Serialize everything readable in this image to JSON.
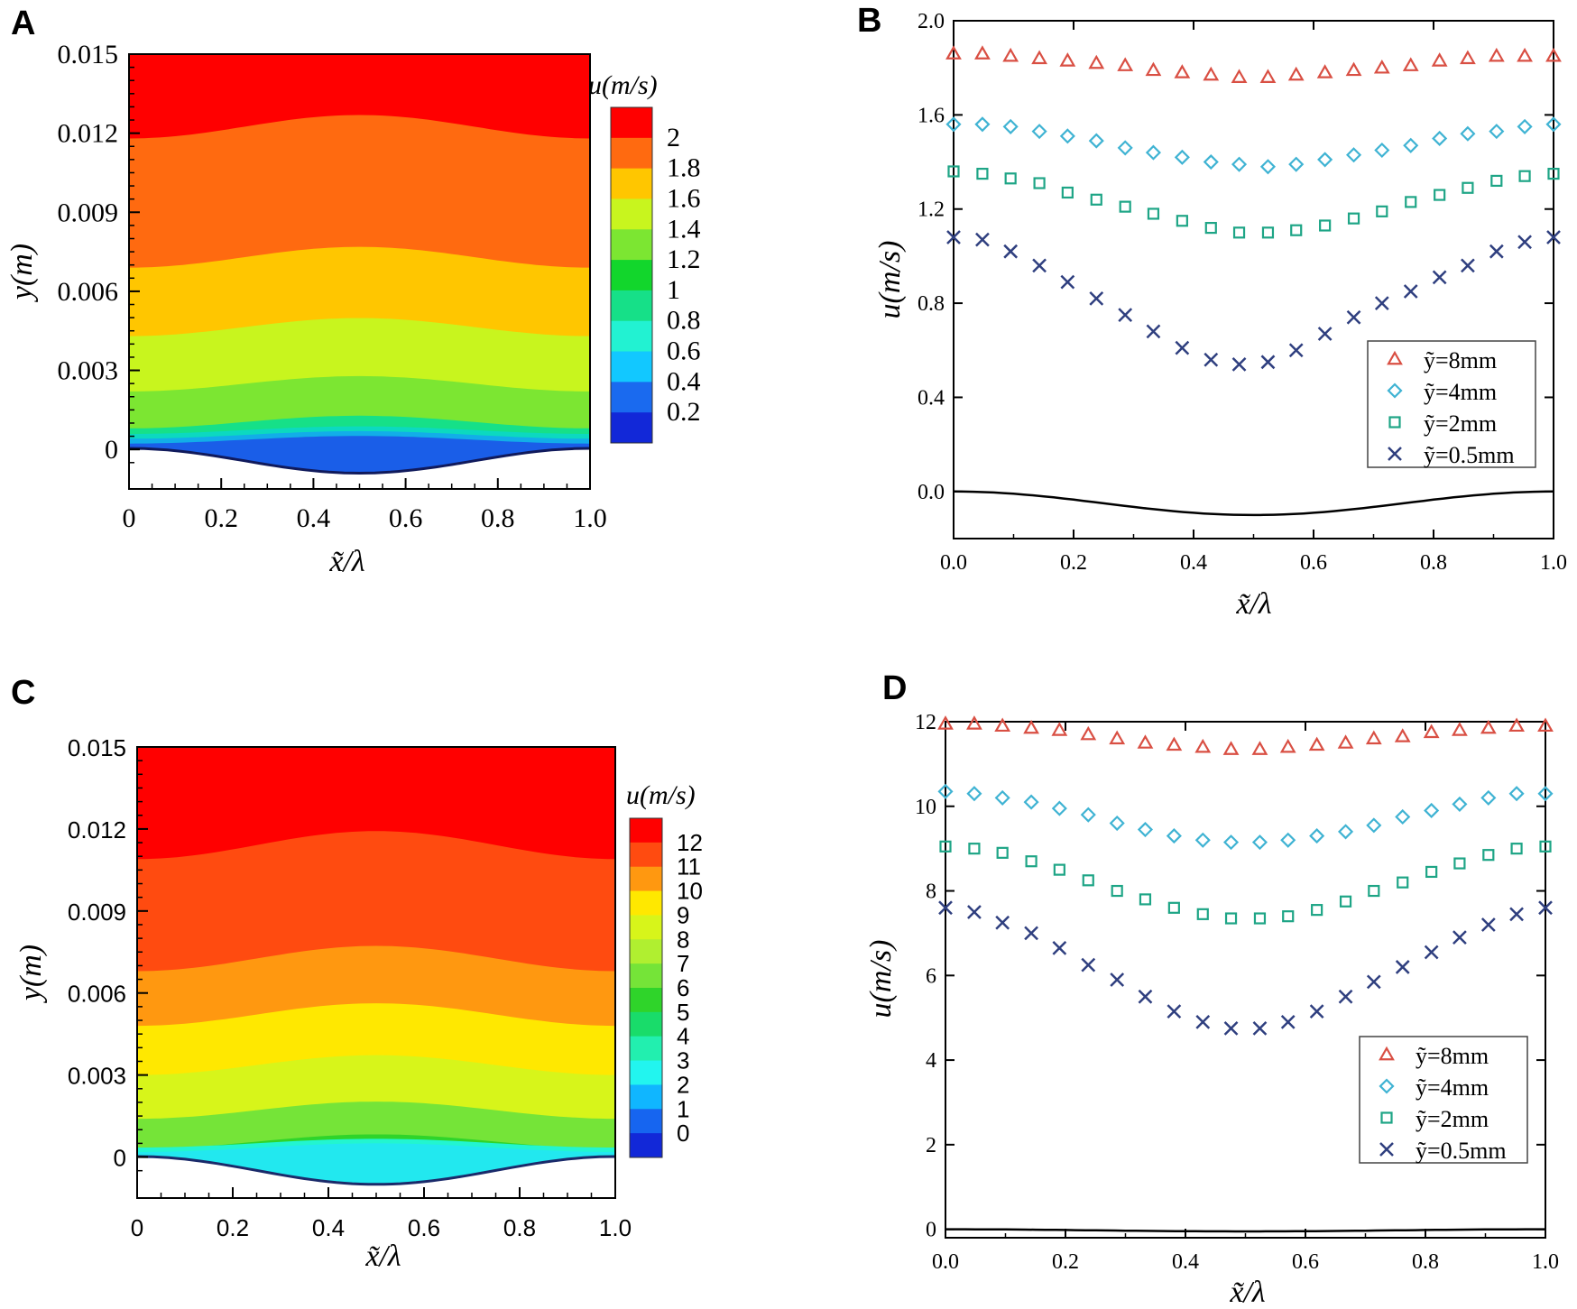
{
  "colors": {
    "red": "#d94f43",
    "cyan": "#3fb3d3",
    "teal": "#1ea586",
    "navy": "#2f3f7f"
  },
  "chart_data": [
    {
      "panel": "A",
      "type": "heatmap",
      "title": "",
      "xlabel": "x̃/λ",
      "ylabel": "y(m)",
      "xlim": [
        0,
        1.0
      ],
      "ylim": [
        -0.0015,
        0.015
      ],
      "xticks": [
        "0",
        "0.2",
        "0.4",
        "0.6",
        "0.8",
        "1.0"
      ],
      "yticks": [
        "0",
        "0.003",
        "0.006",
        "0.009",
        "0.012",
        "0.015"
      ],
      "colorbar_title": "u(m/s)",
      "colorbar_levels": [
        "2",
        "1.8",
        "1.6",
        "1.4",
        "1.2",
        "1",
        "0.8",
        "0.6",
        "0.4",
        "0.2"
      ],
      "colorbar_colors": [
        "#ff0000",
        "#ff6a10",
        "#ffc600",
        "#c8f51e",
        "#7ce632",
        "#12d62c",
        "#16e088",
        "#22f2d2",
        "#12c8ff",
        "#1a6aef",
        "#1228d8"
      ],
      "contour_boundaries_m": [
        0.0008,
        0.0022,
        0.0043,
        0.0069,
        0.0118
      ],
      "wall_depth_m": -0.0009
    },
    {
      "panel": "B",
      "type": "scatter",
      "title": "",
      "xlabel": "x̃/λ",
      "ylabel": "u(m/s)",
      "xlim": [
        0,
        1.0
      ],
      "ylim": [
        -0.2,
        2.0
      ],
      "xticks": [
        "0.0",
        "0.2",
        "0.4",
        "0.6",
        "0.8",
        "1.0"
      ],
      "yticks": [
        "0.0",
        "0.4",
        "0.8",
        "1.2",
        "1.6",
        "2.0"
      ],
      "x": [
        0,
        0.048,
        0.095,
        0.143,
        0.19,
        0.238,
        0.286,
        0.333,
        0.381,
        0.429,
        0.476,
        0.524,
        0.571,
        0.619,
        0.667,
        0.714,
        0.762,
        0.81,
        0.857,
        0.905,
        0.952,
        1.0
      ],
      "series": [
        {
          "name": "ỹ=8mm",
          "marker": "triangle",
          "color": "#d94f43",
          "values": [
            1.86,
            1.86,
            1.85,
            1.84,
            1.83,
            1.82,
            1.81,
            1.79,
            1.78,
            1.77,
            1.76,
            1.76,
            1.77,
            1.78,
            1.79,
            1.8,
            1.81,
            1.83,
            1.84,
            1.85,
            1.85,
            1.85
          ]
        },
        {
          "name": "ỹ=4mm",
          "marker": "diamond",
          "color": "#3fb3d3",
          "values": [
            1.56,
            1.56,
            1.55,
            1.53,
            1.51,
            1.49,
            1.46,
            1.44,
            1.42,
            1.4,
            1.39,
            1.38,
            1.39,
            1.41,
            1.43,
            1.45,
            1.47,
            1.5,
            1.52,
            1.53,
            1.55,
            1.56
          ]
        },
        {
          "name": "ỹ=2mm",
          "marker": "square",
          "color": "#1ea586",
          "values": [
            1.36,
            1.35,
            1.33,
            1.31,
            1.27,
            1.24,
            1.21,
            1.18,
            1.15,
            1.12,
            1.1,
            1.1,
            1.11,
            1.13,
            1.16,
            1.19,
            1.23,
            1.26,
            1.29,
            1.32,
            1.34,
            1.35
          ]
        },
        {
          "name": "ỹ=0.5mm",
          "marker": "x",
          "color": "#2f3f7f",
          "values": [
            1.08,
            1.07,
            1.02,
            0.96,
            0.89,
            0.82,
            0.75,
            0.68,
            0.61,
            0.56,
            0.54,
            0.55,
            0.6,
            0.67,
            0.74,
            0.8,
            0.85,
            0.91,
            0.96,
            1.02,
            1.06,
            1.08
          ]
        }
      ],
      "wall_line": {
        "min": -0.1
      },
      "legend": "center-right"
    },
    {
      "panel": "C",
      "type": "heatmap",
      "title": "",
      "xlabel": "x̃/λ",
      "ylabel": "y(m)",
      "xlim": [
        0,
        1.0
      ],
      "ylim": [
        -0.0015,
        0.015
      ],
      "xticks": [
        "0",
        "0.2",
        "0.4",
        "0.6",
        "0.8",
        "1.0"
      ],
      "yticks": [
        "0",
        "0.003",
        "0.006",
        "0.009",
        "0.012",
        "0.015"
      ],
      "colorbar_title": "u(m/s)",
      "colorbar_levels": [
        "12",
        "11",
        "10",
        "9",
        "8",
        "7",
        "6",
        "5",
        "4",
        "3",
        "2",
        "1",
        "0"
      ],
      "colorbar_colors": [
        "#ff0000",
        "#ff4b10",
        "#ff9810",
        "#ffe800",
        "#d7f51a",
        "#b0ef30",
        "#75e438",
        "#2fd42a",
        "#19dc6a",
        "#22efaf",
        "#22f5ef",
        "#10b6ff",
        "#1665f0",
        "#1228d8"
      ],
      "contour_boundaries_m": [
        0.0003,
        0.0014,
        0.003,
        0.0048,
        0.0068,
        0.0109
      ],
      "wall_depth_m": -0.001
    },
    {
      "panel": "D",
      "type": "scatter",
      "title": "",
      "xlabel": "x̃/λ",
      "ylabel": "u(m/s)",
      "xlim": [
        0,
        1.0
      ],
      "ylim": [
        -0.2,
        12.0
      ],
      "xticks": [
        "0.0",
        "0.2",
        "0.4",
        "0.6",
        "0.8",
        "1.0"
      ],
      "yticks": [
        "0",
        "2",
        "4",
        "6",
        "8",
        "10",
        "12"
      ],
      "x": [
        0,
        0.048,
        0.095,
        0.143,
        0.19,
        0.238,
        0.286,
        0.333,
        0.381,
        0.429,
        0.476,
        0.524,
        0.571,
        0.619,
        0.667,
        0.714,
        0.762,
        0.81,
        0.857,
        0.905,
        0.952,
        1.0
      ],
      "series": [
        {
          "name": "ỹ=8mm",
          "marker": "triangle",
          "color": "#d94f43",
          "values": [
            11.95,
            11.95,
            11.9,
            11.85,
            11.8,
            11.7,
            11.6,
            11.5,
            11.45,
            11.4,
            11.35,
            11.35,
            11.4,
            11.45,
            11.5,
            11.6,
            11.65,
            11.75,
            11.8,
            11.85,
            11.9,
            11.9
          ]
        },
        {
          "name": "ỹ=4mm",
          "marker": "diamond",
          "color": "#3fb3d3",
          "values": [
            10.35,
            10.3,
            10.2,
            10.1,
            9.95,
            9.8,
            9.6,
            9.45,
            9.3,
            9.2,
            9.15,
            9.15,
            9.2,
            9.3,
            9.4,
            9.55,
            9.75,
            9.9,
            10.05,
            10.2,
            10.3,
            10.3
          ]
        },
        {
          "name": "ỹ=2mm",
          "marker": "square",
          "color": "#1ea586",
          "values": [
            9.05,
            9.0,
            8.9,
            8.7,
            8.5,
            8.25,
            8.0,
            7.8,
            7.6,
            7.45,
            7.35,
            7.35,
            7.4,
            7.55,
            7.75,
            8.0,
            8.2,
            8.45,
            8.65,
            8.85,
            9.0,
            9.05
          ]
        },
        {
          "name": "ỹ=0.5mm",
          "marker": "x",
          "color": "#2f3f7f",
          "values": [
            7.6,
            7.5,
            7.25,
            7.0,
            6.65,
            6.25,
            5.9,
            5.5,
            5.15,
            4.9,
            4.75,
            4.75,
            4.9,
            5.15,
            5.5,
            5.85,
            6.2,
            6.55,
            6.9,
            7.2,
            7.45,
            7.6
          ]
        }
      ],
      "wall_line": {
        "min": -0.05
      },
      "legend": "lower-right"
    }
  ]
}
